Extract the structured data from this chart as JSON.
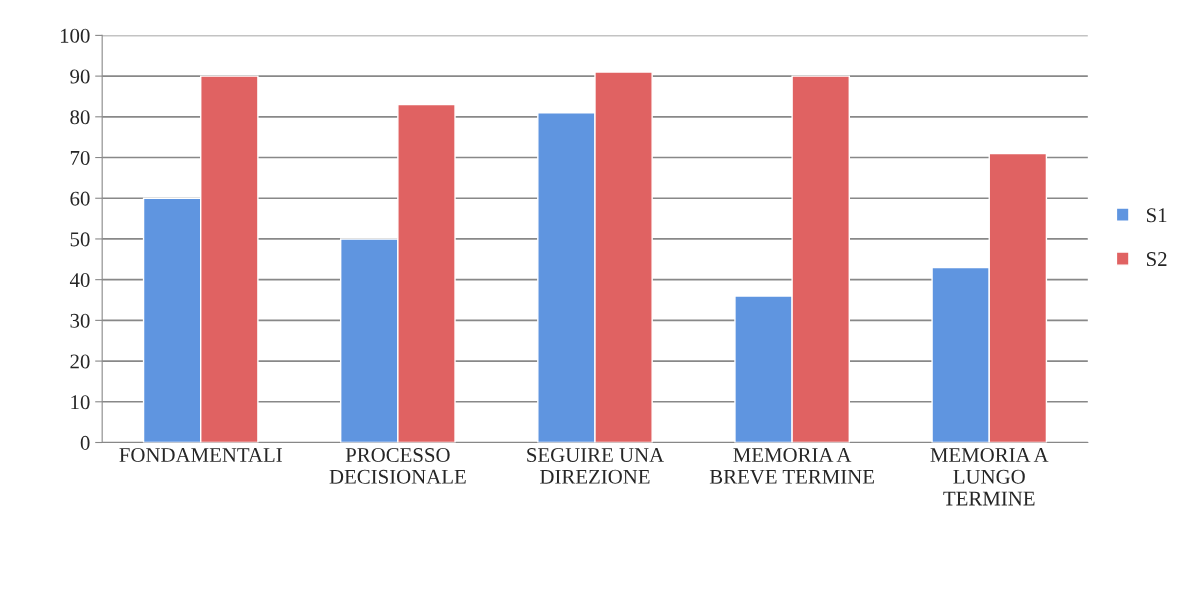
{
  "chart_data": {
    "type": "bar",
    "categories": [
      "FONDAMENTALI",
      "PROCESSO\nDECISIONALE",
      "SEGUIRE UNA\nDIREZIONE",
      "MEMORIA A\nBREVE TERMINE",
      "MEMORIA A\nLUNGO\nTERMINE"
    ],
    "series": [
      {
        "name": "S1",
        "color": "#5f95e0",
        "values": [
          60,
          50,
          81,
          36,
          43
        ]
      },
      {
        "name": "S2",
        "color": "#e06262",
        "values": [
          90,
          83,
          91,
          90,
          71
        ]
      }
    ],
    "ylim": [
      0,
      100
    ],
    "yticks": [
      0,
      10,
      20,
      30,
      40,
      50,
      60,
      70,
      80,
      90,
      100
    ],
    "grid": "y",
    "legend": "right"
  }
}
